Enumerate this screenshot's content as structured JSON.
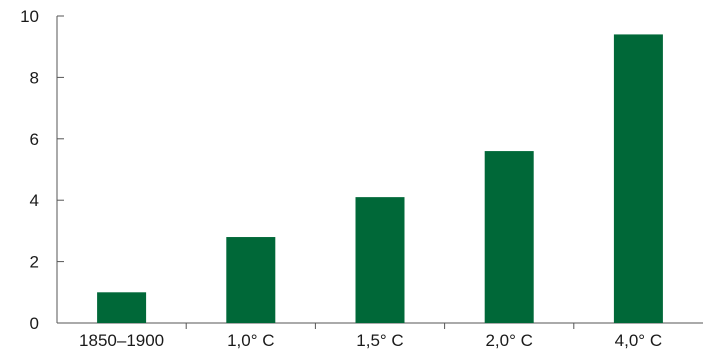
{
  "chart_data": {
    "type": "bar",
    "title": "",
    "xlabel": "",
    "ylabel": "",
    "categories": [
      "1850–1900",
      "1,0° C",
      "1,5° C",
      "2,0° C",
      "4,0° C"
    ],
    "values": [
      1.0,
      2.8,
      4.1,
      5.6,
      9.4
    ],
    "ylim": [
      0,
      10
    ],
    "yticks": [
      "0",
      "2",
      "4",
      "6",
      "8",
      "10"
    ],
    "grid": false,
    "legend": "none",
    "bar_color": "#006838"
  }
}
